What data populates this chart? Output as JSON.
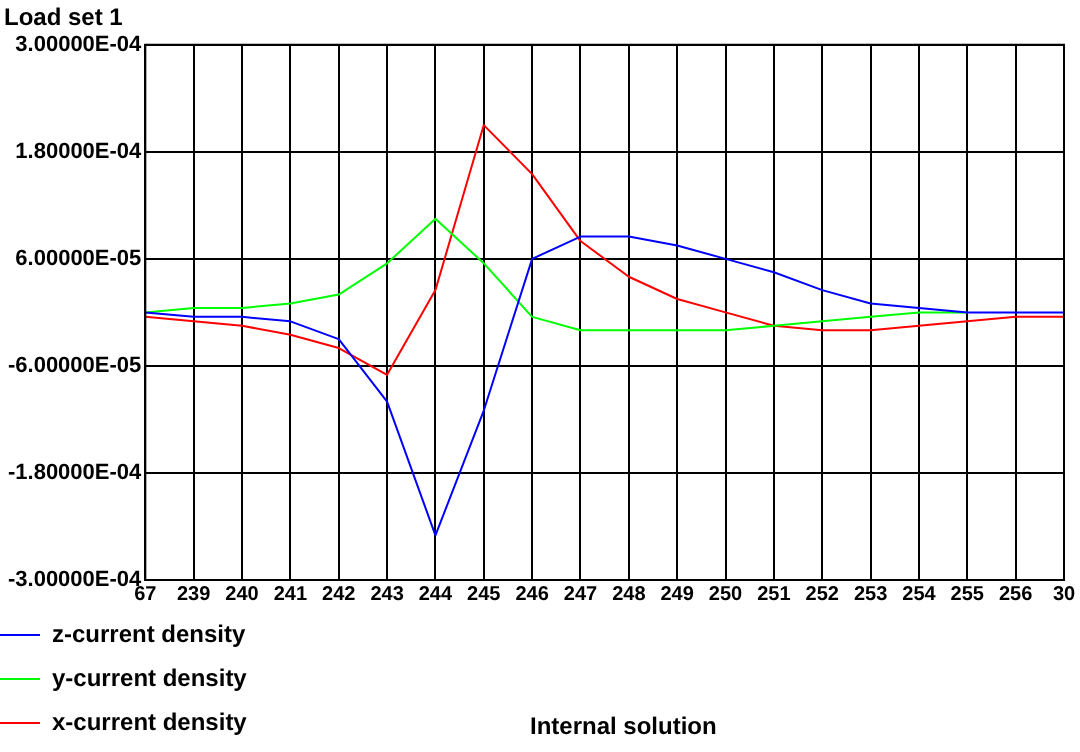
{
  "chart_data": {
    "type": "line",
    "title": "Load set 1",
    "categories": [
      "67",
      "239",
      "240",
      "241",
      "242",
      "243",
      "244",
      "245",
      "246",
      "247",
      "248",
      "249",
      "250",
      "251",
      "252",
      "253",
      "254",
      "255",
      "256",
      "30"
    ],
    "ylim": [
      -0.0003,
      0.0003
    ],
    "yticks": [
      {
        "value": -0.0003,
        "label": "-3.00000E-04"
      },
      {
        "value": -0.00018,
        "label": "-1.80000E-04"
      },
      {
        "value": -6e-05,
        "label": "-6.00000E-05"
      },
      {
        "value": 6e-05,
        "label": "6.00000E-05"
      },
      {
        "value": 0.00018,
        "label": "1.80000E-04"
      },
      {
        "value": 0.0003,
        "label": "3.00000E-04"
      }
    ],
    "grid": true,
    "legend": "bottom left",
    "marker": "none",
    "line_style": "solid",
    "annotations": [
      "Internal solution"
    ],
    "series": [
      {
        "name": "z-current density",
        "color": "#0000ff",
        "values": [
          0,
          -5e-06,
          -5e-06,
          -1e-05,
          -3e-05,
          -0.0001,
          -0.00025,
          -0.00011,
          6e-05,
          8.5e-05,
          8.5e-05,
          7.5e-05,
          6e-05,
          4.5e-05,
          2.5e-05,
          1e-05,
          5e-06,
          0,
          0,
          0
        ]
      },
      {
        "name": "y-current density",
        "color": "#00ff00",
        "values": [
          0,
          5e-06,
          5e-06,
          1e-05,
          2e-05,
          5.5e-05,
          0.000105,
          5.5e-05,
          -5e-06,
          -2e-05,
          -2e-05,
          -2e-05,
          -2e-05,
          -1.5e-05,
          -1e-05,
          -5e-06,
          0,
          0,
          null,
          null
        ]
      },
      {
        "name": "x-current density",
        "color": "#ff0000",
        "values": [
          -5e-06,
          -1e-05,
          -1.5e-05,
          -2.5e-05,
          -4e-05,
          -7e-05,
          2.5e-05,
          0.00021,
          0.000155,
          8e-05,
          4e-05,
          1.5e-05,
          0,
          -1.5e-05,
          -2e-05,
          -2e-05,
          -1.5e-05,
          -1e-05,
          -5e-06,
          -5e-06
        ]
      }
    ]
  }
}
